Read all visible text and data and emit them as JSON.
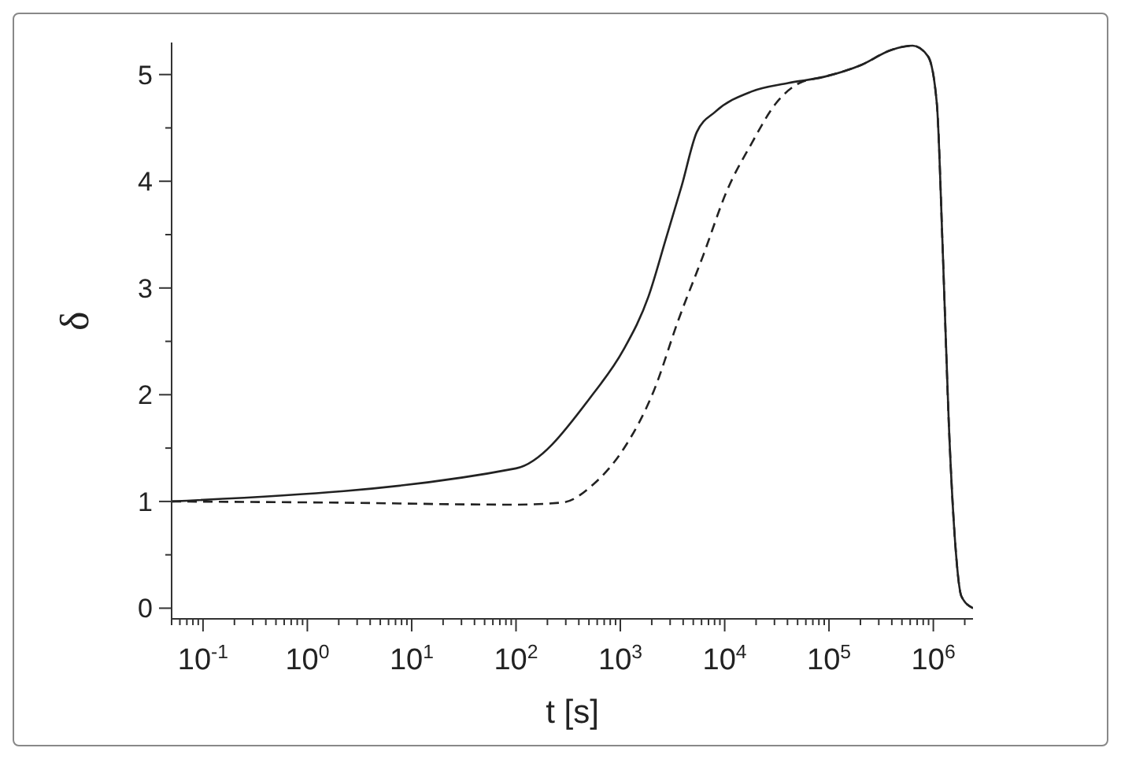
{
  "chart_data": {
    "type": "line",
    "xlabel": "t [s]",
    "ylabel": "δ",
    "log": "x",
    "grid": false,
    "legend": false,
    "marker": "none",
    "xlim": [
      0.05,
      2400000
    ],
    "ylim": [
      -0.1,
      5.3
    ],
    "xticks": [
      {
        "value": 0.05,
        "label": null
      },
      {
        "value": 0.06,
        "label": null
      },
      {
        "value": 0.07,
        "label": null
      },
      {
        "value": 0.08,
        "label": null
      },
      {
        "value": 0.09,
        "label": null
      },
      {
        "value": 0.1,
        "label": "10$^{-1}$"
      },
      {
        "value": 0.2,
        "label": null
      },
      {
        "value": 0.3,
        "label": null
      },
      {
        "value": 0.4,
        "label": null
      },
      {
        "value": 0.5,
        "label": null
      },
      {
        "value": 0.6,
        "label": null
      },
      {
        "value": 0.7,
        "label": null
      },
      {
        "value": 0.8,
        "label": null
      },
      {
        "value": 0.9,
        "label": null
      },
      {
        "value": 1,
        "label": "10$^{0}$"
      },
      {
        "value": 2,
        "label": null
      },
      {
        "value": 3,
        "label": null
      },
      {
        "value": 4,
        "label": null
      },
      {
        "value": 5,
        "label": null
      },
      {
        "value": 6,
        "label": null
      },
      {
        "value": 7,
        "label": null
      },
      {
        "value": 8,
        "label": null
      },
      {
        "value": 9,
        "label": null
      },
      {
        "value": 10,
        "label": "10$^{1}$"
      },
      {
        "value": 20,
        "label": null
      },
      {
        "value": 30,
        "label": null
      },
      {
        "value": 40,
        "label": null
      },
      {
        "value": 50,
        "label": null
      },
      {
        "value": 60,
        "label": null
      },
      {
        "value": 70,
        "label": null
      },
      {
        "value": 80,
        "label": null
      },
      {
        "value": 90,
        "label": null
      },
      {
        "value": 100,
        "label": "10$^{2}$"
      },
      {
        "value": 200,
        "label": null
      },
      {
        "value": 300,
        "label": null
      },
      {
        "value": 400,
        "label": null
      },
      {
        "value": 500,
        "label": null
      },
      {
        "value": 600,
        "label": null
      },
      {
        "value": 700,
        "label": null
      },
      {
        "value": 800,
        "label": null
      },
      {
        "value": 900,
        "label": null
      },
      {
        "value": 1000,
        "label": "10$^{3}$"
      },
      {
        "value": 2000,
        "label": null
      },
      {
        "value": 3000,
        "label": null
      },
      {
        "value": 4000,
        "label": null
      },
      {
        "value": 5000,
        "label": null
      },
      {
        "value": 6000,
        "label": null
      },
      {
        "value": 7000,
        "label": null
      },
      {
        "value": 8000,
        "label": null
      },
      {
        "value": 9000,
        "label": null
      },
      {
        "value": 10000,
        "label": "10$^{4}$"
      },
      {
        "value": 20000,
        "label": null
      },
      {
        "value": 30000,
        "label": null
      },
      {
        "value": 40000,
        "label": null
      },
      {
        "value": 50000,
        "label": null
      },
      {
        "value": 60000,
        "label": null
      },
      {
        "value": 70000,
        "label": null
      },
      {
        "value": 80000,
        "label": null
      },
      {
        "value": 90000,
        "label": null
      },
      {
        "value": 100000,
        "label": "10$^{5}$"
      },
      {
        "value": 200000,
        "label": null
      },
      {
        "value": 300000,
        "label": null
      },
      {
        "value": 400000,
        "label": null
      },
      {
        "value": 500000,
        "label": null
      },
      {
        "value": 600000,
        "label": null
      },
      {
        "value": 700000,
        "label": null
      },
      {
        "value": 800000,
        "label": null
      },
      {
        "value": 900000,
        "label": null
      },
      {
        "value": 1000000,
        "label": "10$^{6}$"
      },
      {
        "value": 2000000,
        "label": null
      }
    ],
    "yticks": [
      0,
      {
        "value": 0.5,
        "label": null
      },
      1,
      {
        "value": 1.5,
        "label": null
      },
      2,
      {
        "value": 2.5,
        "label": null
      },
      3,
      {
        "value": 3.5,
        "label": null
      },
      4,
      {
        "value": 4.5,
        "label": null
      },
      5
    ],
    "series": [
      {
        "color": "#222222",
        "line_style": "solid",
        "x": [
          0.05,
          100,
          550,
          1070,
          1860,
          2750,
          3880,
          5400,
          8100,
          18000,
          40500,
          91000,
          204000,
          395000,
          635000,
          890000,
          1080000,
          1230000,
          1410000,
          1620000,
          1860000,
          2400000
        ],
        "values": [
          1.0,
          1.31,
          2.01,
          2.42,
          2.92,
          3.47,
          3.96,
          4.46,
          4.65,
          4.84,
          4.92,
          4.98,
          5.09,
          5.23,
          5.27,
          5.17,
          4.73,
          3.36,
          1.71,
          0.61,
          0.11,
          0.0
        ]
      },
      {
        "color": "#222222",
        "line_style": "dashed",
        "x": [
          0.05,
          1.5,
          100,
          280,
          550,
          1070,
          2100,
          3600,
          6200,
          10500,
          18000,
          31000,
          52000,
          91000,
          204000,
          395000,
          635000,
          890000,
          1080000,
          1230000,
          1410000,
          1620000,
          1860000,
          2400000
        ],
        "values": [
          1.0,
          0.99,
          0.97,
          0.99,
          1.16,
          1.49,
          2.04,
          2.7,
          3.3,
          3.91,
          4.35,
          4.73,
          4.92,
          4.98,
          5.09,
          5.23,
          5.27,
          5.17,
          4.73,
          3.36,
          1.71,
          0.61,
          0.11,
          0.0
        ]
      }
    ]
  }
}
